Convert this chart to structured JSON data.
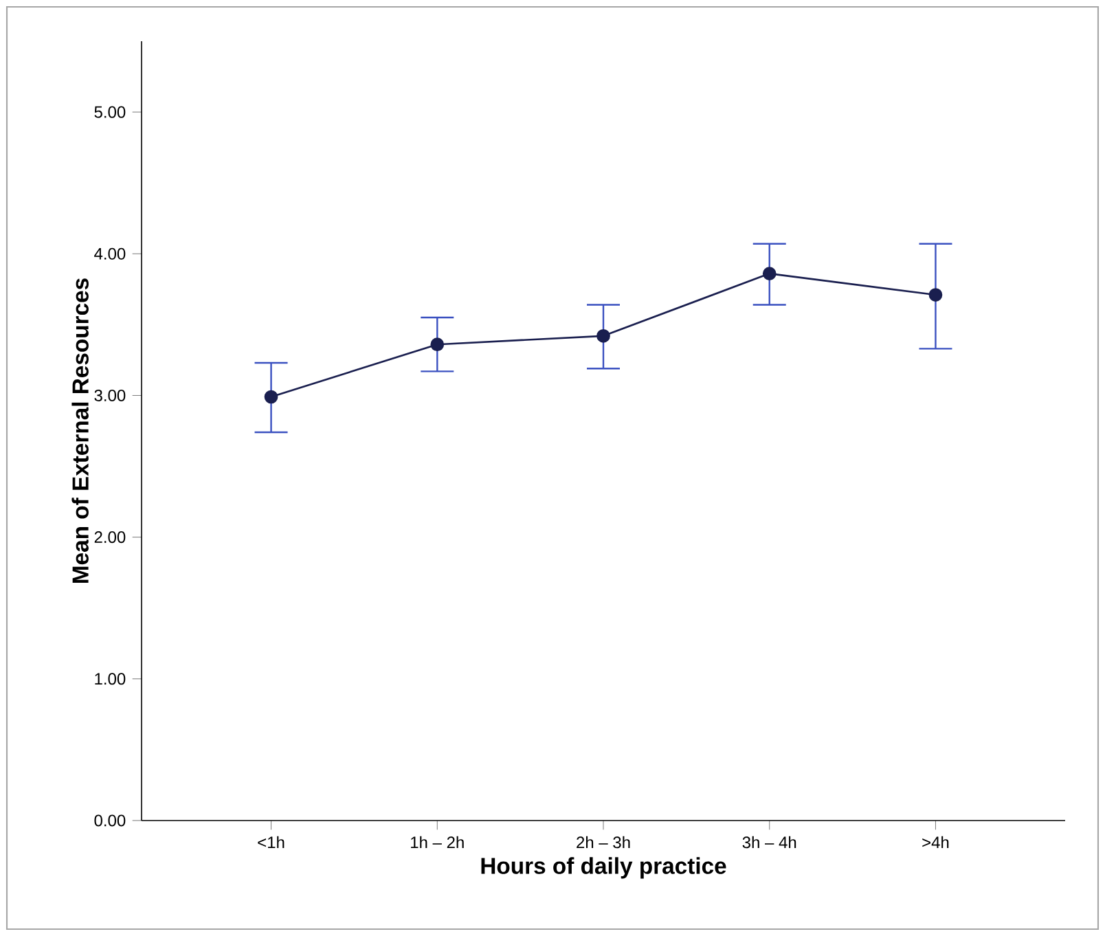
{
  "chart_data": {
    "type": "line",
    "xlabel": "Hours of daily practice",
    "ylabel": "Mean of External Resources",
    "categories": [
      "<1h",
      "1h – 2h",
      "2h – 3h",
      "3h – 4h",
      ">4h"
    ],
    "series": [
      {
        "color": "#1a1f4f",
        "values": [
          2.99,
          3.36,
          3.42,
          3.86,
          3.71
        ],
        "errors": [
          [
            2.74,
            3.23
          ],
          [
            3.17,
            3.55
          ],
          [
            3.19,
            3.64
          ],
          [
            3.64,
            4.07
          ],
          [
            3.33,
            4.07
          ]
        ]
      }
    ],
    "ylim": [
      0,
      5.5
    ],
    "yticks": [
      {
        "value": 0,
        "label": "0.00"
      },
      {
        "value": 1,
        "label": "1.00"
      },
      {
        "value": 2,
        "label": "2.00"
      },
      {
        "value": 3,
        "label": "3.00"
      },
      {
        "value": 4,
        "label": "4.00"
      },
      {
        "value": 5,
        "label": "5.00"
      }
    ],
    "marker": "circle",
    "line_style": "solid"
  }
}
